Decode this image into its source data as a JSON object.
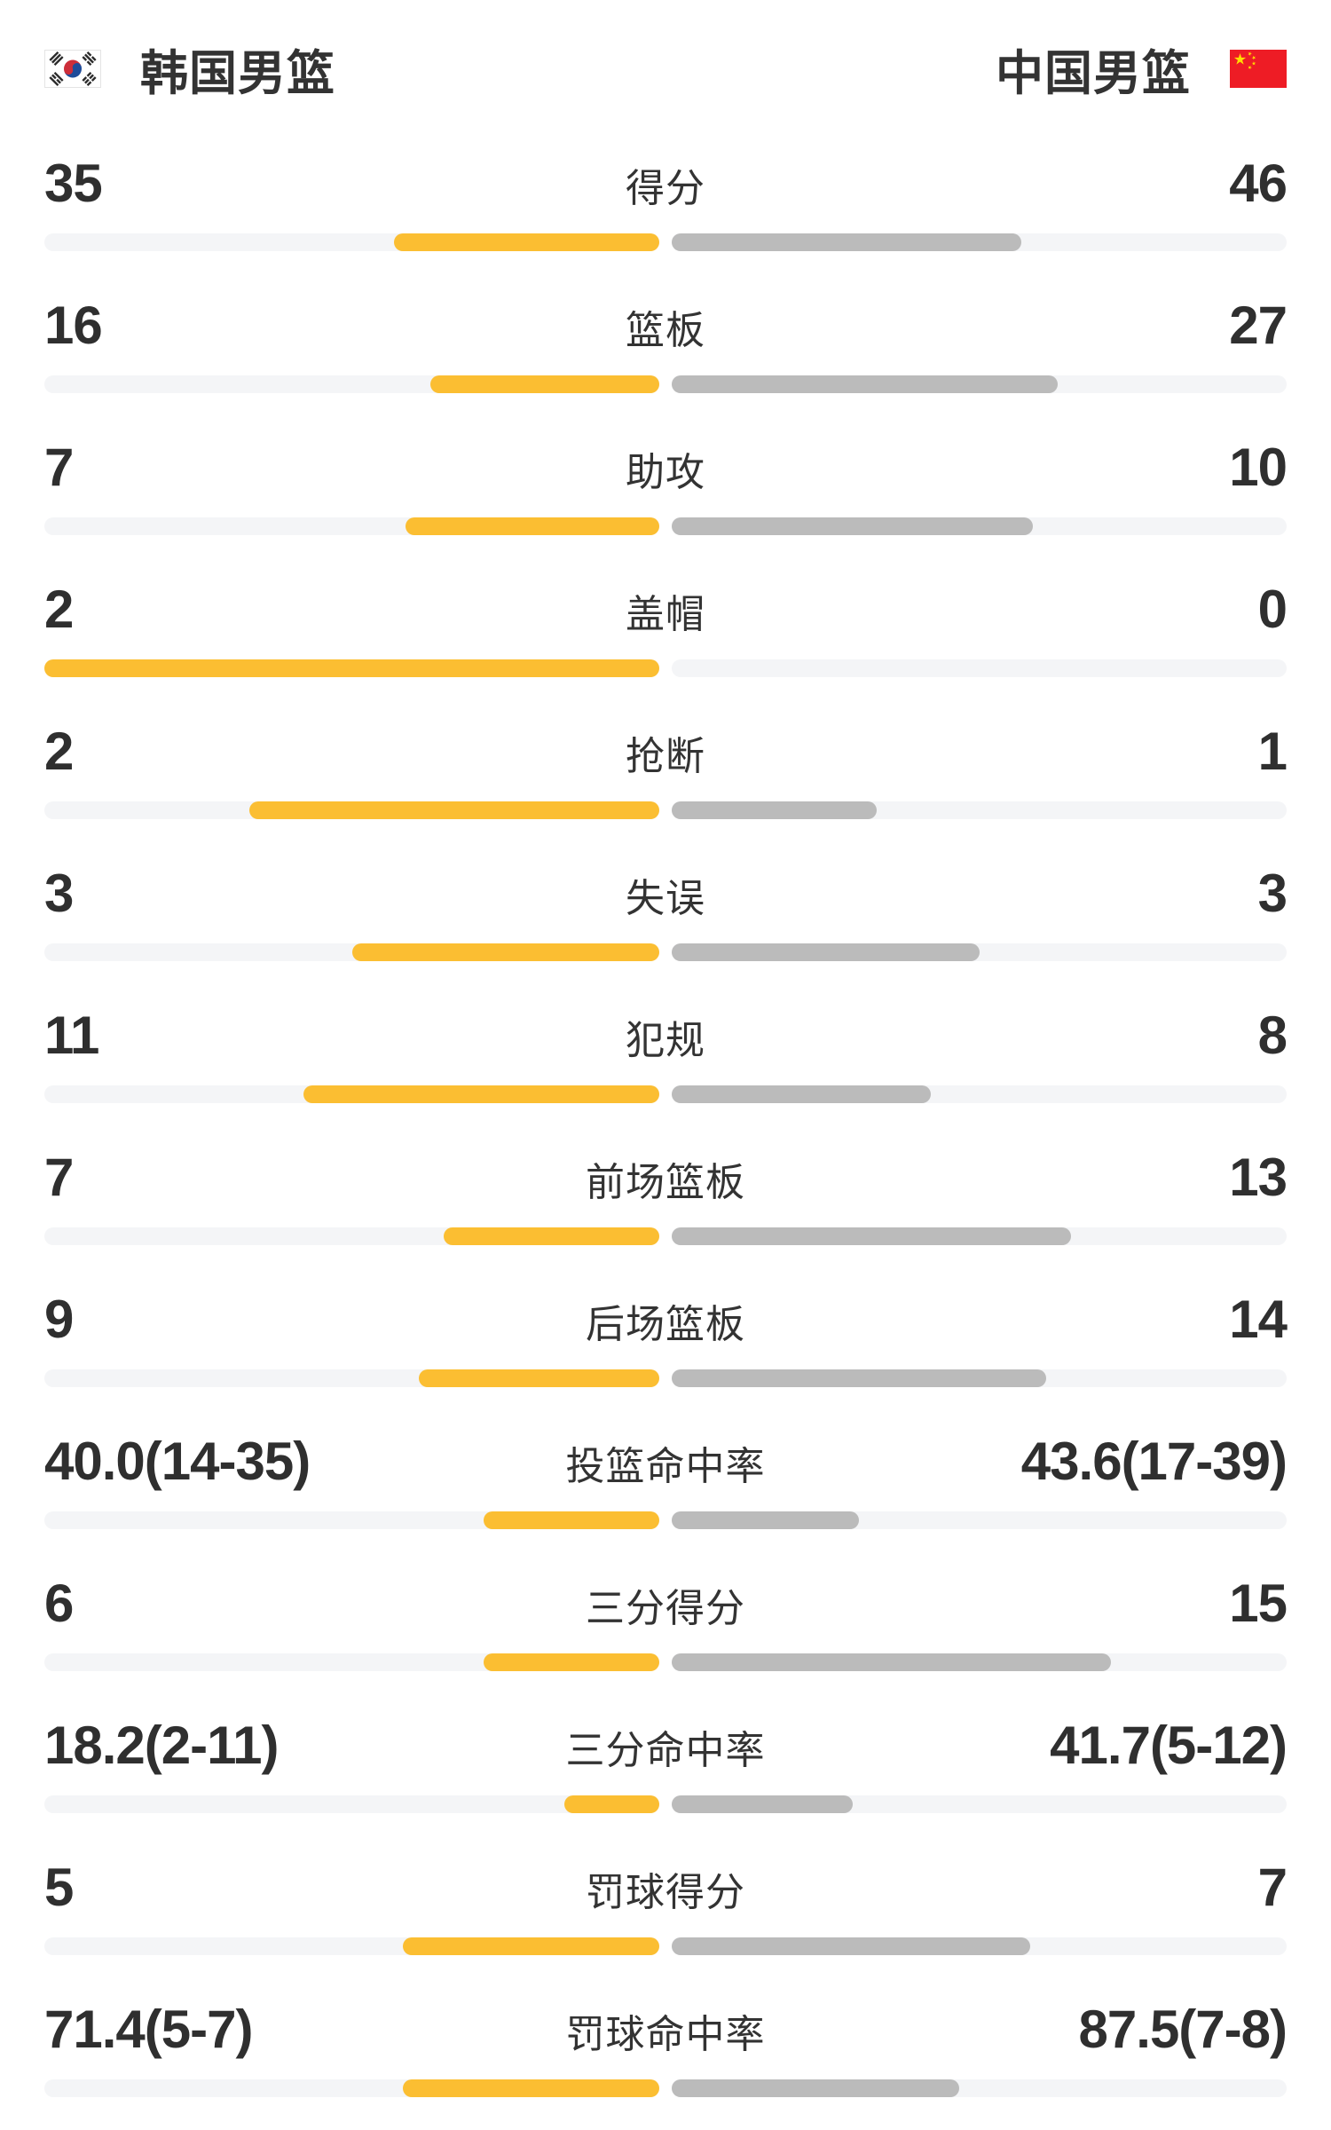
{
  "header": {
    "left_team": {
      "name": "韩国男篮",
      "flag": "south-korea-flag"
    },
    "right_team": {
      "name": "中国男篮",
      "flag": "china-flag"
    }
  },
  "colors": {
    "home_fill": "#fbbe32",
    "away_fill": "#bbbbbb",
    "track": "#f4f5f7",
    "value_text": "#2f2f2f",
    "label_text": "#333333",
    "korea_flag_red": "#cd2e3a",
    "korea_flag_blue": "#1e4c9a",
    "china_flag_red": "#ee1c25",
    "china_flag_yellow": "#ffde00"
  },
  "chart_data": {
    "type": "bar",
    "title": "韩国男篮 vs 中国男篮",
    "legend": [
      "韩国男篮",
      "中国男篮"
    ],
    "legend_position": "top",
    "orientation": "horizontal-paired-from-center",
    "rows": [
      {
        "label": "得分",
        "left": "35",
        "right": "46",
        "left_fill": 0.432,
        "right_fill": 0.568
      },
      {
        "label": "篮板",
        "left": "16",
        "right": "27",
        "left_fill": 0.372,
        "right_fill": 0.628
      },
      {
        "label": "助攻",
        "left": "7",
        "right": "10",
        "left_fill": 0.412,
        "right_fill": 0.588
      },
      {
        "label": "盖帽",
        "left": "2",
        "right": "0",
        "left_fill": 1.0,
        "right_fill": 0.0
      },
      {
        "label": "抢断",
        "left": "2",
        "right": "1",
        "left_fill": 0.667,
        "right_fill": 0.333
      },
      {
        "label": "失误",
        "left": "3",
        "right": "3",
        "left_fill": 0.5,
        "right_fill": 0.5
      },
      {
        "label": "犯规",
        "left": "11",
        "right": "8",
        "left_fill": 0.579,
        "right_fill": 0.421
      },
      {
        "label": "前场篮板",
        "left": "7",
        "right": "13",
        "left_fill": 0.35,
        "right_fill": 0.65
      },
      {
        "label": "后场篮板",
        "left": "9",
        "right": "14",
        "left_fill": 0.391,
        "right_fill": 0.609
      },
      {
        "label": "投篮命中率",
        "left": "40.0(14-35)",
        "right": "43.6(17-39)",
        "left_fill": 0.286,
        "right_fill": 0.304
      },
      {
        "label": "三分得分",
        "left": "6",
        "right": "15",
        "left_fill": 0.286,
        "right_fill": 0.714
      },
      {
        "label": "三分命中率",
        "left": "18.2(2-11)",
        "right": "41.7(5-12)",
        "left_fill": 0.154,
        "right_fill": 0.294
      },
      {
        "label": "罚球得分",
        "left": "5",
        "right": "7",
        "left_fill": 0.417,
        "right_fill": 0.583
      },
      {
        "label": "罚球命中率",
        "left": "71.4(5-7)",
        "right": "87.5(7-8)",
        "left_fill": 0.417,
        "right_fill": 0.467
      }
    ]
  }
}
